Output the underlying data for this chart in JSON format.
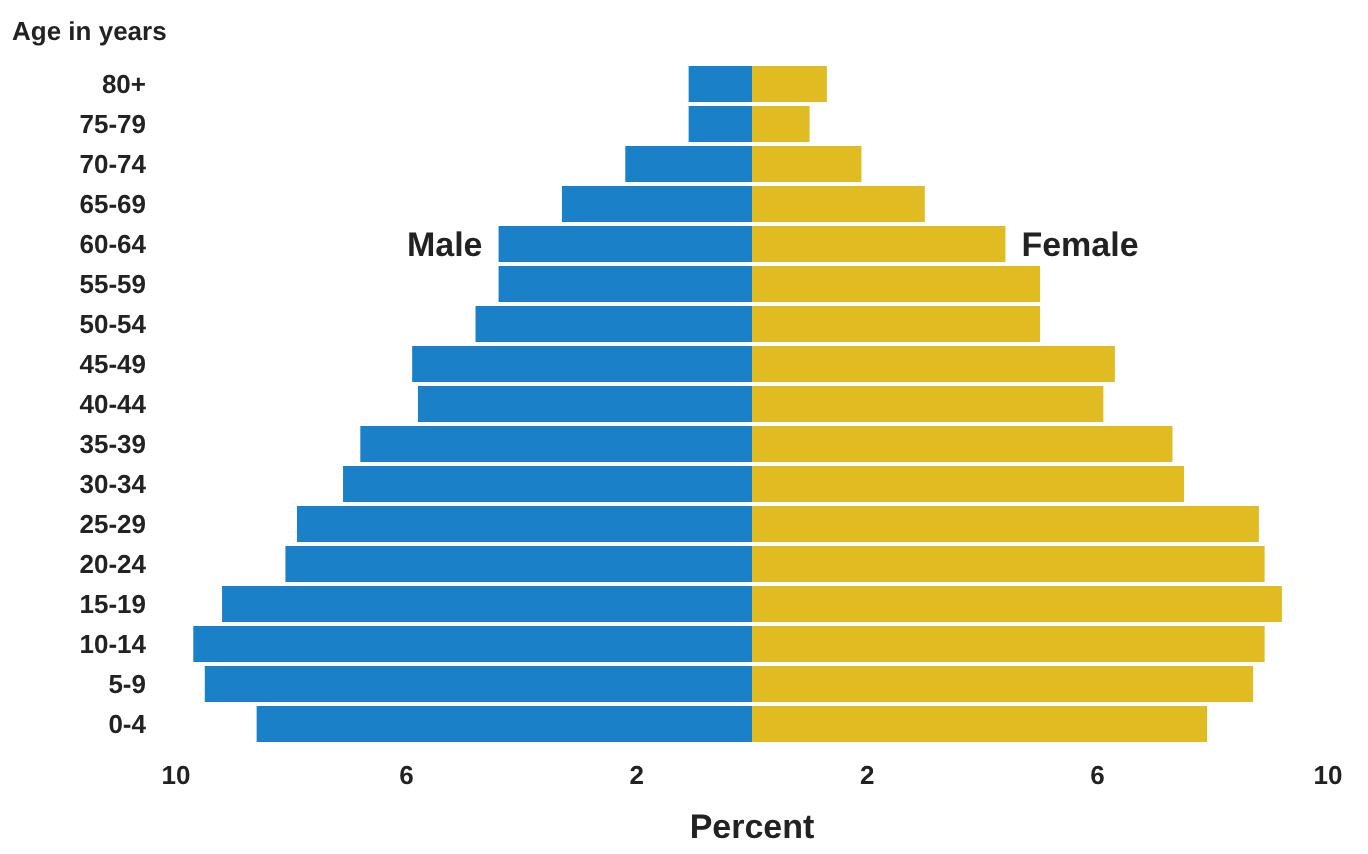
{
  "chart_data": {
    "type": "bar",
    "orientation": "horizontal",
    "ylabel": "Age in years",
    "xlabel": "Percent",
    "categories": [
      "80+",
      "75-79",
      "70-74",
      "65-69",
      "60-64",
      "55-59",
      "50-54",
      "45-49",
      "40-44",
      "35-39",
      "30-34",
      "25-29",
      "20-24",
      "15-19",
      "10-14",
      "5-9",
      "0-4"
    ],
    "series": [
      {
        "name": "Male",
        "color": "#1a80c8",
        "values": [
          -1.1,
          -1.1,
          -2.2,
          -3.3,
          -4.4,
          -4.4,
          -4.8,
          -5.9,
          -5.8,
          -6.8,
          -7.1,
          -7.9,
          -8.1,
          -9.2,
          -9.7,
          -9.5,
          -8.6
        ]
      },
      {
        "name": "Female",
        "color": "#e0bc22",
        "values": [
          1.3,
          1.0,
          1.9,
          3.0,
          4.4,
          5.0,
          5.0,
          6.3,
          6.1,
          7.3,
          7.5,
          8.8,
          8.9,
          9.2,
          8.9,
          8.7,
          7.9
        ]
      }
    ],
    "xlim": [
      -10,
      10
    ],
    "xticks": [
      {
        "value": -10,
        "label": "10"
      },
      {
        "value": -6,
        "label": "6"
      },
      {
        "value": -2,
        "label": "2"
      },
      {
        "value": 2,
        "label": "2"
      },
      {
        "value": 6,
        "label": "6"
      },
      {
        "value": 10,
        "label": "10"
      }
    ],
    "stacked": true,
    "grid": false,
    "legend": false
  }
}
